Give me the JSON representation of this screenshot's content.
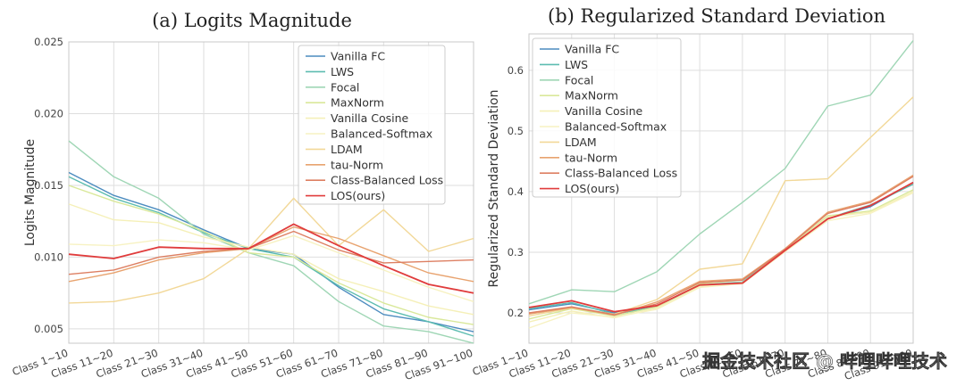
{
  "chart_data": [
    {
      "type": "line",
      "title": "(a) Logits Magnitude",
      "xlabel": "",
      "ylabel": "Logits Magnitude",
      "categories": [
        "Class 1~10",
        "Class 11~20",
        "Class 21~30",
        "Class 31~40",
        "Class 41~50",
        "Class 51~60",
        "Class 61~70",
        "Class 71~80",
        "Class 81~90",
        "Class 91~100"
      ],
      "ylim": [
        0.004,
        0.025
      ],
      "yticks": [
        0.005,
        0.01,
        0.015,
        0.02,
        0.025
      ],
      "ytick_labels": [
        "0.005",
        "0.010",
        "0.015",
        "0.020",
        "0.025"
      ],
      "grid": true,
      "legend_position": "top-right",
      "series": [
        {
          "name": "Vanilla FC",
          "color": "#4c8cbf",
          "values": [
            0.0159,
            0.0143,
            0.0133,
            0.0119,
            0.0106,
            0.0102,
            0.0079,
            0.006,
            0.0055,
            0.0048
          ]
        },
        {
          "name": "LWS",
          "color": "#5cbcb0",
          "values": [
            0.0156,
            0.0141,
            0.0131,
            0.0117,
            0.0106,
            0.01,
            0.008,
            0.0064,
            0.0055,
            0.0045
          ]
        },
        {
          "name": "Focal",
          "color": "#9fd6b5",
          "values": [
            0.0181,
            0.0156,
            0.0141,
            0.0116,
            0.0103,
            0.0094,
            0.0069,
            0.0052,
            0.0048,
            0.004
          ]
        },
        {
          "name": "MaxNorm",
          "color": "#d9e89a",
          "values": [
            0.015,
            0.0139,
            0.013,
            0.0118,
            0.0103,
            0.01,
            0.0082,
            0.0068,
            0.0058,
            0.0053
          ]
        },
        {
          "name": "Vanilla Cosine",
          "color": "#f5f0b8",
          "values": [
            0.0137,
            0.0126,
            0.0124,
            0.0114,
            0.0107,
            0.0102,
            0.0085,
            0.0076,
            0.0066,
            0.006
          ]
        },
        {
          "name": "Balanced-Softmax",
          "color": "#f7f2c2",
          "values": [
            0.0109,
            0.0108,
            0.0112,
            0.011,
            0.0105,
            0.0115,
            0.0103,
            0.0091,
            0.0079,
            0.0069
          ]
        },
        {
          "name": "LDAM",
          "color": "#f2d898",
          "values": [
            0.0068,
            0.0069,
            0.0075,
            0.0085,
            0.0106,
            0.0141,
            0.0108,
            0.0133,
            0.0104,
            0.0113
          ]
        },
        {
          "name": "tau-Norm",
          "color": "#e8a36f",
          "values": [
            0.0083,
            0.0089,
            0.0098,
            0.0103,
            0.0106,
            0.0121,
            0.0113,
            0.0101,
            0.0089,
            0.0083
          ]
        },
        {
          "name": "Class-Balanced Loss",
          "color": "#dd7f62",
          "values": [
            0.0088,
            0.0091,
            0.01,
            0.0104,
            0.0106,
            0.0118,
            0.0105,
            0.0096,
            0.0097,
            0.0098
          ]
        },
        {
          "name": "LOS(ours)",
          "color": "#e03c3c",
          "values": [
            0.0102,
            0.0099,
            0.0107,
            0.0106,
            0.0106,
            0.0123,
            0.0108,
            0.0094,
            0.0081,
            0.0075
          ]
        }
      ]
    },
    {
      "type": "line",
      "title": "(b) Regularized Standard Deviation",
      "xlabel": "",
      "ylabel": "Regularized Standard Deviation",
      "categories": [
        "Class 1~10",
        "Class 11~20",
        "Class 21~30",
        "Class 31~40",
        "Class 41~50",
        "Class 51~60",
        "Class 61~70",
        "Class 71~80",
        "Class 81~90",
        "Class 91~100"
      ],
      "ylim": [
        0.15,
        0.66
      ],
      "yticks": [
        0.2,
        0.3,
        0.4,
        0.5,
        0.6
      ],
      "ytick_labels": [
        "0.2",
        "0.3",
        "0.4",
        "0.5",
        "0.6"
      ],
      "grid": true,
      "legend_position": "top-left",
      "series": [
        {
          "name": "Vanilla FC",
          "color": "#4c8cbf",
          "values": [
            0.205,
            0.215,
            0.2,
            0.212,
            0.245,
            0.25,
            0.305,
            0.355,
            0.375,
            0.415
          ]
        },
        {
          "name": "LWS",
          "color": "#5cbcb0",
          "values": [
            0.207,
            0.217,
            0.198,
            0.21,
            0.246,
            0.251,
            0.306,
            0.356,
            0.378,
            0.412
          ]
        },
        {
          "name": "Focal",
          "color": "#9fd6b5",
          "values": [
            0.215,
            0.238,
            0.235,
            0.268,
            0.33,
            0.382,
            0.438,
            0.541,
            0.559,
            0.649
          ]
        },
        {
          "name": "MaxNorm",
          "color": "#d9e89a",
          "values": [
            0.19,
            0.207,
            0.195,
            0.21,
            0.248,
            0.254,
            0.304,
            0.36,
            0.368,
            0.403
          ]
        },
        {
          "name": "Vanilla Cosine",
          "color": "#f5f0b8",
          "values": [
            0.185,
            0.203,
            0.192,
            0.208,
            0.244,
            0.25,
            0.302,
            0.358,
            0.366,
            0.4
          ]
        },
        {
          "name": "Balanced-Softmax",
          "color": "#f7f2c2",
          "values": [
            0.175,
            0.2,
            0.193,
            0.206,
            0.242,
            0.248,
            0.301,
            0.352,
            0.364,
            0.398
          ]
        },
        {
          "name": "LDAM",
          "color": "#f2d898",
          "values": [
            0.195,
            0.208,
            0.198,
            0.222,
            0.272,
            0.281,
            0.418,
            0.421,
            0.489,
            0.556
          ]
        },
        {
          "name": "tau-Norm",
          "color": "#e8a36f",
          "values": [
            0.198,
            0.209,
            0.196,
            0.218,
            0.252,
            0.256,
            0.306,
            0.366,
            0.384,
            0.427
          ]
        },
        {
          "name": "Class-Balanced Loss",
          "color": "#dd7f62",
          "values": [
            0.2,
            0.21,
            0.197,
            0.215,
            0.25,
            0.254,
            0.305,
            0.364,
            0.382,
            0.425
          ]
        },
        {
          "name": "LOS(ours)",
          "color": "#e03c3c",
          "values": [
            0.209,
            0.22,
            0.202,
            0.212,
            0.246,
            0.249,
            0.303,
            0.355,
            0.377,
            0.415
          ]
        }
      ]
    }
  ],
  "watermark": "掘金技术社区 @ 哔哩哔哩技术"
}
